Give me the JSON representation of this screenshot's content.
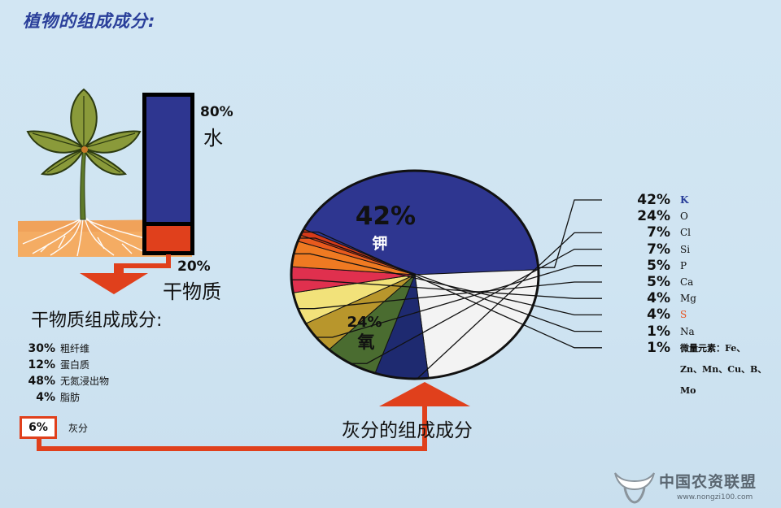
{
  "title": "植物的组成成分:",
  "plant": {
    "water_pct": "80%",
    "water_label": "水",
    "dry_pct": "20%",
    "dry_label": "干物质",
    "water_fraction": 0.8,
    "dry_fraction": 0.2
  },
  "dry_matter": {
    "title": "干物质组成成分:",
    "items": [
      {
        "value": "30%",
        "name": "粗纤维"
      },
      {
        "value": "12%",
        "name": "蛋白质"
      },
      {
        "value": "48%",
        "name": "无氮浸出物"
      },
      {
        "value": "4%",
        "name": "脂肪"
      }
    ],
    "ash": {
      "value": "6%",
      "name": "灰分"
    }
  },
  "ash_composition": {
    "title": "灰分的组成成分",
    "pie_labels": {
      "k_pct": "42%",
      "k_name": "钾",
      "o_pct": "24%",
      "o_name": "氧"
    },
    "trace_line1": "微量元素：Fe、",
    "trace_line2": "Zn、Mn、Cu、B、",
    "trace_line3": "Mo"
  },
  "chart_data": {
    "type": "pie",
    "title": "灰分的组成成分",
    "slices": [
      {
        "label": "K",
        "value": 42,
        "display": "42%",
        "color": "#2e3690",
        "symbol_color": "#2a3f9a"
      },
      {
        "label": "O",
        "value": 24,
        "display": "24%",
        "color": "#f3f3f3",
        "symbol_color": "#111111"
      },
      {
        "label": "Cl",
        "value": 7,
        "display": "7%",
        "color": "#1e2a70",
        "symbol_color": "#111111"
      },
      {
        "label": "Si",
        "value": 7,
        "display": "7%",
        "color": "#4a6c30",
        "symbol_color": "#111111"
      },
      {
        "label": "P",
        "value": 5,
        "display": "5%",
        "color": "#b8962c",
        "symbol_color": "#111111"
      },
      {
        "label": "Ca",
        "value": 5,
        "display": "5%",
        "color": "#f2e27a",
        "symbol_color": "#111111"
      },
      {
        "label": "Mg",
        "value": 4,
        "display": "4%",
        "color": "#e0304e",
        "symbol_color": "#111111"
      },
      {
        "label": "S",
        "value": 4,
        "display": "4%",
        "color": "#ef7a22",
        "symbol_color": "#e8501c"
      },
      {
        "label": "Na",
        "value": 1,
        "display": "1%",
        "color": "#e85a1e",
        "symbol_color": "#111111"
      },
      {
        "label": "",
        "value": 1,
        "display": "1%",
        "color": "#d63a1a",
        "symbol_color": "#111111"
      }
    ]
  },
  "logo": {
    "text": "中国农资联盟",
    "url": "www.nongzi100.com"
  },
  "colors": {
    "accent_red": "#e0401c",
    "water_blue": "#2e3690",
    "title_blue": "#2a3f9a"
  }
}
